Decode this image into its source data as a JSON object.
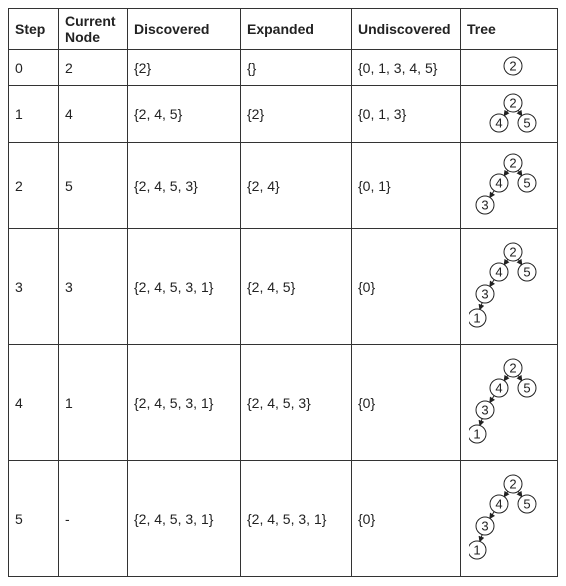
{
  "headers": [
    "Step",
    "Current Node",
    "Discovered",
    "Expanded",
    "Undiscovered",
    "Tree"
  ],
  "rows": [
    {
      "step": "0",
      "current": "2",
      "discovered": "{2}",
      "expanded": "{}",
      "undiscovered": "{0, 1, 3, 4, 5}",
      "tree": {
        "nodes": [
          "2"
        ],
        "edges": []
      }
    },
    {
      "step": "1",
      "current": "4",
      "discovered": "{2, 4, 5}",
      "expanded": "{2}",
      "undiscovered": "{0, 1, 3}",
      "tree": {
        "nodes": [
          "2",
          "4",
          "5"
        ],
        "edges": [
          [
            "2",
            "4"
          ],
          [
            "2",
            "5"
          ]
        ]
      }
    },
    {
      "step": "2",
      "current": "5",
      "discovered": "{2, 4, 5, 3}",
      "expanded": "{2, 4}",
      "undiscovered": "{0, 1}",
      "tree": {
        "nodes": [
          "2",
          "4",
          "5",
          "3"
        ],
        "edges": [
          [
            "2",
            "4"
          ],
          [
            "2",
            "5"
          ],
          [
            "4",
            "3"
          ]
        ]
      }
    },
    {
      "step": "3",
      "current": "3",
      "discovered": "{2, 4, 5, 3, 1}",
      "expanded": "{2, 4, 5}",
      "undiscovered": "{0}",
      "tree": {
        "nodes": [
          "2",
          "4",
          "5",
          "3",
          "1"
        ],
        "edges": [
          [
            "2",
            "4"
          ],
          [
            "2",
            "5"
          ],
          [
            "4",
            "3"
          ],
          [
            "3",
            "1"
          ]
        ]
      }
    },
    {
      "step": "4",
      "current": "1",
      "discovered": "{2, 4, 5, 3, 1}",
      "expanded": "{2, 4, 5, 3}",
      "undiscovered": "{0}",
      "tree": {
        "nodes": [
          "2",
          "4",
          "5",
          "3",
          "1"
        ],
        "edges": [
          [
            "2",
            "4"
          ],
          [
            "2",
            "5"
          ],
          [
            "4",
            "3"
          ],
          [
            "3",
            "1"
          ]
        ]
      }
    },
    {
      "step": "5",
      "current": "-",
      "discovered": "{2, 4, 5, 3, 1}",
      "expanded": "{2, 4, 5, 3, 1}",
      "undiscovered": "{0}",
      "tree": {
        "nodes": [
          "2",
          "4",
          "5",
          "3",
          "1"
        ],
        "edges": [
          [
            "2",
            "4"
          ],
          [
            "2",
            "5"
          ],
          [
            "4",
            "3"
          ],
          [
            "3",
            "1"
          ]
        ]
      }
    }
  ]
}
